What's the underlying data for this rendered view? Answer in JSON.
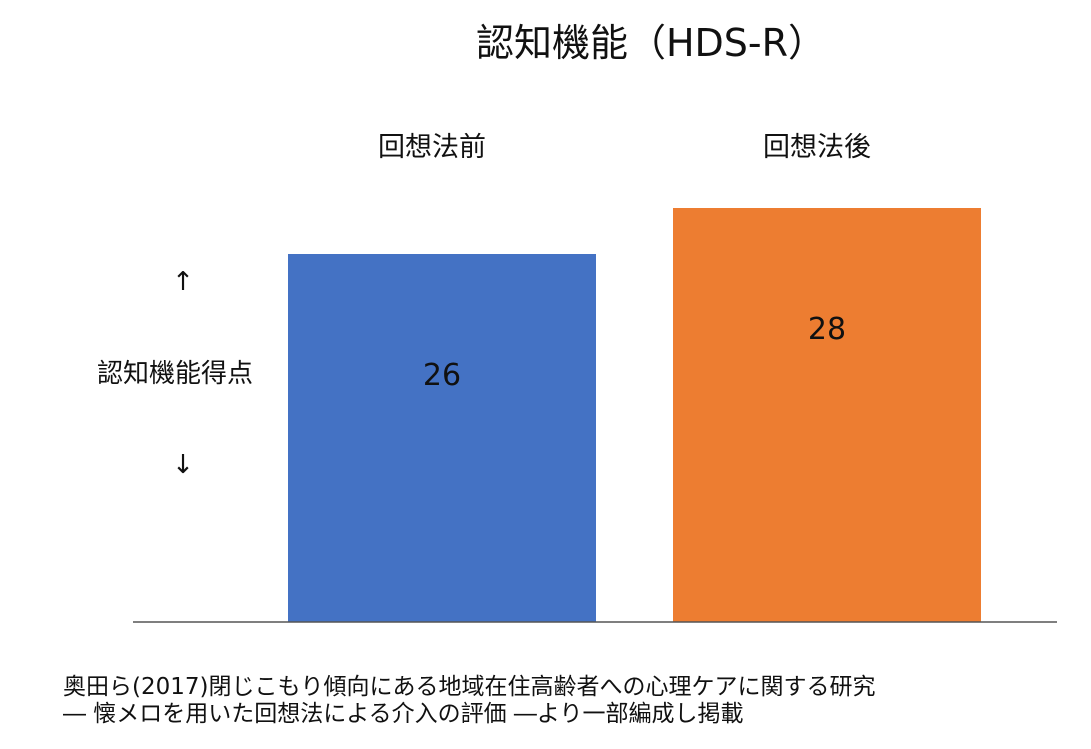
{
  "chart_data": {
    "type": "bar",
    "title": "認知機能（HDS-R）",
    "categories": [
      "回想法前",
      "回想法後"
    ],
    "values": [
      26,
      28
    ],
    "colors": [
      "#4472C4",
      "#ED7D31"
    ],
    "xlabel": "",
    "ylabel": "認知機能得点",
    "ylabel_arrows": [
      "↑",
      "↓"
    ],
    "ylim": [
      10,
      30
    ],
    "category_label_position": "top",
    "data_labels": "inside-bar",
    "grid": false,
    "legend": "none"
  },
  "source": {
    "lines": [
      "奥田ら(2017)閉じこもり傾向にある地域在住高齢者への心理ケアに関する研究",
      "― 懐メロを用いた回想法による介入の評価 ―より一部編成し掲載"
    ]
  }
}
